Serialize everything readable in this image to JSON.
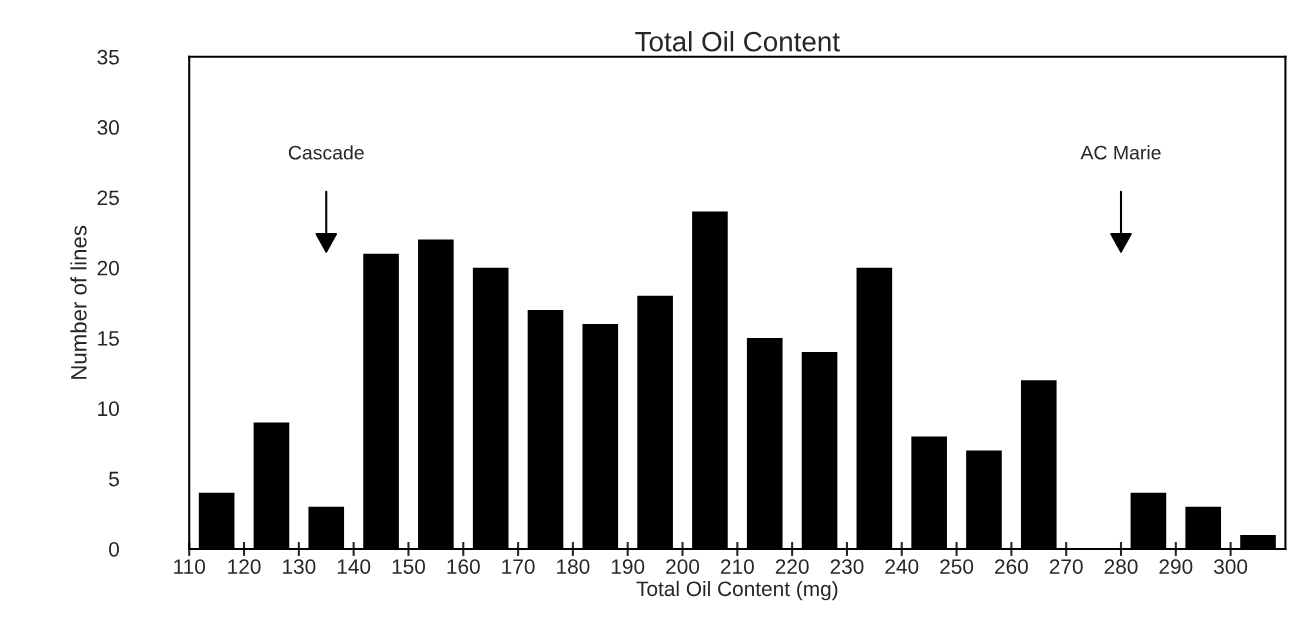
{
  "chart_data": {
    "type": "histogram",
    "title": "Total Oil Content",
    "xlabel": "Total Oil Content (mg)",
    "ylabel": "Number of lines",
    "bins": [
      110,
      120,
      130,
      140,
      150,
      160,
      170,
      180,
      190,
      200,
      210,
      220,
      230,
      240,
      250,
      260,
      270,
      280,
      290,
      300,
      310
    ],
    "values": [
      4,
      9,
      3,
      21,
      22,
      20,
      17,
      16,
      18,
      24,
      15,
      14,
      20,
      8,
      7,
      12,
      0,
      4,
      3,
      1
    ],
    "color": "#000000",
    "xlim": [
      110,
      310
    ],
    "xticks": [
      110,
      120,
      130,
      140,
      150,
      160,
      170,
      180,
      190,
      200,
      210,
      220,
      230,
      240,
      250,
      260,
      270,
      280,
      290,
      300
    ],
    "ylim": [
      0,
      35
    ],
    "yticks": [
      0,
      5,
      10,
      15,
      20,
      25,
      30,
      35
    ],
    "grid": false,
    "legend": false,
    "annotations": [
      "Cascade",
      "AC Marie"
    ]
  }
}
